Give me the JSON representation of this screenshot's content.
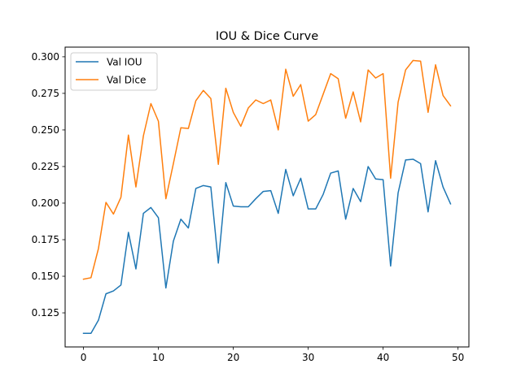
{
  "chart_data": {
    "type": "line",
    "title": "IOU & Dice Curve",
    "xlabel": "",
    "ylabel": "",
    "xlim": [
      -2.45,
      51.45
    ],
    "ylim": [
      0.1017,
      0.3066
    ],
    "x_ticks": [
      0,
      10,
      20,
      30,
      40,
      50
    ],
    "y_ticks": [
      0.125,
      0.15,
      0.175,
      0.2,
      0.225,
      0.25,
      0.275,
      0.3
    ],
    "y_tick_labels": [
      "0.125",
      "0.150",
      "0.175",
      "0.200",
      "0.225",
      "0.250",
      "0.275",
      "0.300"
    ],
    "grid": false,
    "legend_position": "upper-left",
    "x": [
      0,
      1,
      2,
      3,
      4,
      5,
      6,
      7,
      8,
      9,
      10,
      11,
      12,
      13,
      14,
      15,
      16,
      17,
      18,
      19,
      20,
      21,
      22,
      23,
      24,
      25,
      26,
      27,
      28,
      29,
      30,
      31,
      32,
      33,
      34,
      35,
      36,
      37,
      38,
      39,
      40,
      41,
      42,
      43,
      44,
      45,
      46,
      47,
      48,
      49
    ],
    "series": [
      {
        "name": "Val IOU",
        "color": "#1f77b4",
        "values": [
          0.111,
          0.111,
          0.12,
          0.138,
          0.14,
          0.144,
          0.18,
          0.155,
          0.193,
          0.197,
          0.19,
          0.142,
          0.174,
          0.189,
          0.183,
          0.21,
          0.212,
          0.211,
          0.159,
          0.214,
          0.198,
          0.1975,
          0.1975,
          0.203,
          0.208,
          0.2085,
          0.193,
          0.223,
          0.205,
          0.217,
          0.196,
          0.196,
          0.206,
          0.2205,
          0.222,
          0.189,
          0.21,
          0.201,
          0.225,
          0.2165,
          0.216,
          0.157,
          0.207,
          0.2295,
          0.23,
          0.227,
          0.194,
          0.229,
          0.211,
          0.1995
        ]
      },
      {
        "name": "Val Dice",
        "color": "#ff7f0e",
        "values": [
          0.148,
          0.149,
          0.169,
          0.2005,
          0.1925,
          0.204,
          0.2465,
          0.211,
          0.246,
          0.268,
          0.256,
          0.203,
          0.227,
          0.2515,
          0.251,
          0.27,
          0.277,
          0.2715,
          0.2265,
          0.2785,
          0.262,
          0.2525,
          0.265,
          0.2705,
          0.268,
          0.2705,
          0.25,
          0.2915,
          0.273,
          0.281,
          0.256,
          0.2605,
          0.2745,
          0.2885,
          0.285,
          0.258,
          0.276,
          0.2555,
          0.291,
          0.2855,
          0.2885,
          0.217,
          0.269,
          0.291,
          0.2975,
          0.297,
          0.262,
          0.2945,
          0.2735,
          0.2665
        ]
      }
    ]
  }
}
